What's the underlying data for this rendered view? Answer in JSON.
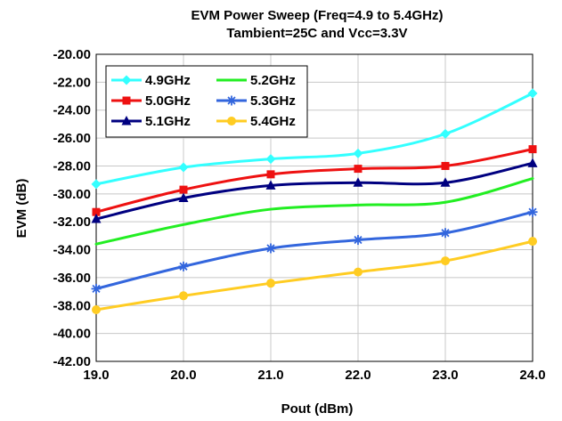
{
  "chart_data": {
    "type": "line",
    "title": "EVM Power Sweep (Freq=4.9 to 5.4GHz)",
    "subtitle": "Tambient=25C and Vcc=3.3V",
    "xlabel": "Pout (dBm)",
    "ylabel": "EVM (dB)",
    "xlim": [
      19,
      24
    ],
    "ylim": [
      -42,
      -20
    ],
    "x_ticks": [
      19,
      20,
      21,
      22,
      23,
      24
    ],
    "x_tick_labels": [
      "19.0",
      "20.0",
      "21.0",
      "22.0",
      "23.0",
      "24.0"
    ],
    "y_ticks": [
      -20,
      -22,
      -24,
      -26,
      -28,
      -30,
      -32,
      -34,
      -36,
      -38,
      -40,
      -42
    ],
    "y_tick_labels": [
      "-20.00",
      "-22.00",
      "-24.00",
      "-26.00",
      "-28.00",
      "-30.00",
      "-32.00",
      "-34.00",
      "-36.00",
      "-38.00",
      "-40.00",
      "-42.00"
    ],
    "grid": true,
    "legend_position": "top-left",
    "x": [
      19,
      20,
      21,
      22,
      23,
      24
    ],
    "series": [
      {
        "name": "4.9GHz",
        "color": "#33ffff",
        "marker": "diamond",
        "values": [
          -29.3,
          -28.1,
          -27.5,
          -27.1,
          -25.7,
          -22.8
        ]
      },
      {
        "name": "5.0GHz",
        "color": "#ee1111",
        "marker": "square",
        "values": [
          -31.3,
          -29.7,
          -28.6,
          -28.2,
          -28.0,
          -26.8
        ]
      },
      {
        "name": "5.1GHz",
        "color": "#000080",
        "marker": "triangle",
        "values": [
          -31.8,
          -30.3,
          -29.4,
          -29.2,
          -29.2,
          -27.8
        ]
      },
      {
        "name": "5.2GHz",
        "color": "#22ee22",
        "marker": "none",
        "values": [
          -33.6,
          -32.2,
          -31.1,
          -30.8,
          -30.6,
          -28.9
        ]
      },
      {
        "name": "5.3GHz",
        "color": "#3366dd",
        "marker": "star",
        "values": [
          -36.8,
          -35.2,
          -33.9,
          -33.3,
          -32.8,
          -31.3
        ]
      },
      {
        "name": "5.4GHz",
        "color": "#ffcc22",
        "marker": "circle",
        "values": [
          -38.3,
          -37.3,
          -36.4,
          -35.6,
          -34.8,
          -33.4
        ]
      }
    ]
  }
}
